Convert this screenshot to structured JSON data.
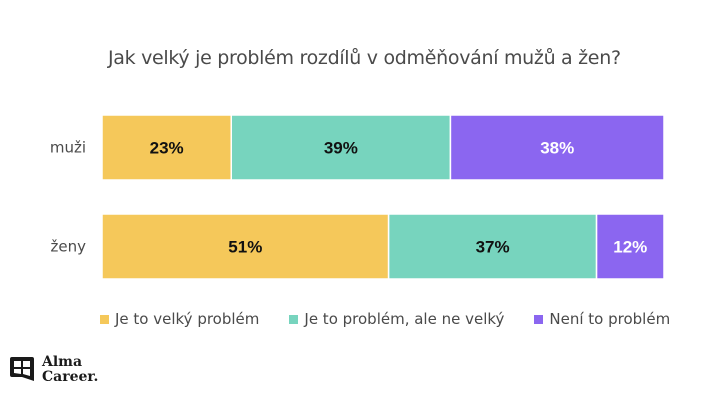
{
  "chart_data": {
    "type": "bar",
    "orientation": "horizontal",
    "stacked": true,
    "percent": true,
    "title": "Jak velký je problém rozdílů v odměňování mužů a žen?",
    "xlabel": "",
    "ylabel": "",
    "categories": [
      "muži",
      "ženy"
    ],
    "series": [
      {
        "name": "Je to velký problém",
        "color": "#F5C85A",
        "label_color": "#111111",
        "values": [
          23,
          51
        ]
      },
      {
        "name": "Je to problém, ale ne velký",
        "color": "#77D4BE",
        "label_color": "#111111",
        "values": [
          39,
          37
        ]
      },
      {
        "name": "Není to problém",
        "color": "#8B66F0",
        "label_color": "#ffffff",
        "values": [
          38,
          12
        ]
      }
    ],
    "xlim": [
      0,
      100
    ],
    "grid": false,
    "legend_position": "bottom"
  },
  "branding": {
    "logo_line1": "Alma",
    "logo_line2": "Career."
  }
}
